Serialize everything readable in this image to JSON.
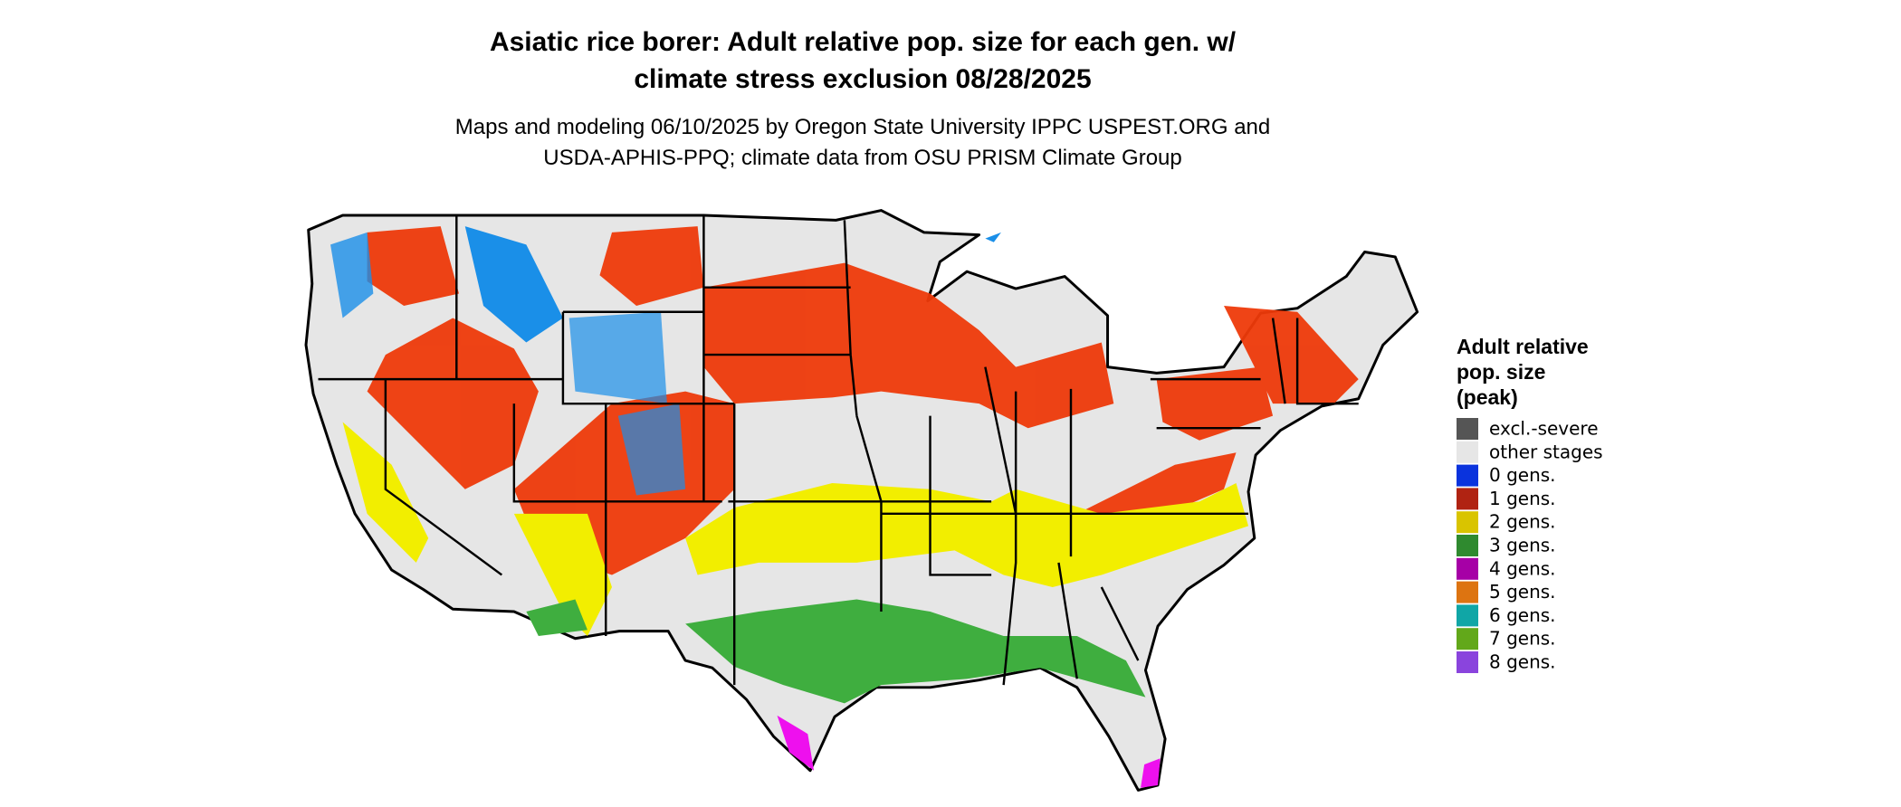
{
  "header": {
    "title": [
      "Asiatic rice borer: Adult relative pop. size for each gen. w/",
      "climate stress exclusion 08/28/2025"
    ],
    "subtitle": [
      "Maps and modeling 06/10/2025 by Oregon State University IPPC USPEST.ORG and",
      "USDA-APHIS-PPQ; climate data from OSU PRISM Climate Group"
    ]
  },
  "legend": {
    "title": [
      "Adult relative",
      "pop. size",
      "(peak)"
    ],
    "items": [
      {
        "label": "excl.-severe",
        "color": "#555555"
      },
      {
        "label": "other stages",
        "color": "#e6e6e6"
      },
      {
        "label": "0 gens.",
        "color": "#0a33dd"
      },
      {
        "label": "1 gens.",
        "color": "#b02312"
      },
      {
        "label": "2 gens.",
        "color": "#d9c400"
      },
      {
        "label": "3 gens.",
        "color": "#2f8a2f"
      },
      {
        "label": "4 gens.",
        "color": "#a600a6"
      },
      {
        "label": "5 gens.",
        "color": "#dd7411"
      },
      {
        "label": "6 gens.",
        "color": "#10a6a6"
      },
      {
        "label": "7 gens.",
        "color": "#62a81a"
      },
      {
        "label": "8 gens.",
        "color": "#8a44dd"
      }
    ]
  }
}
